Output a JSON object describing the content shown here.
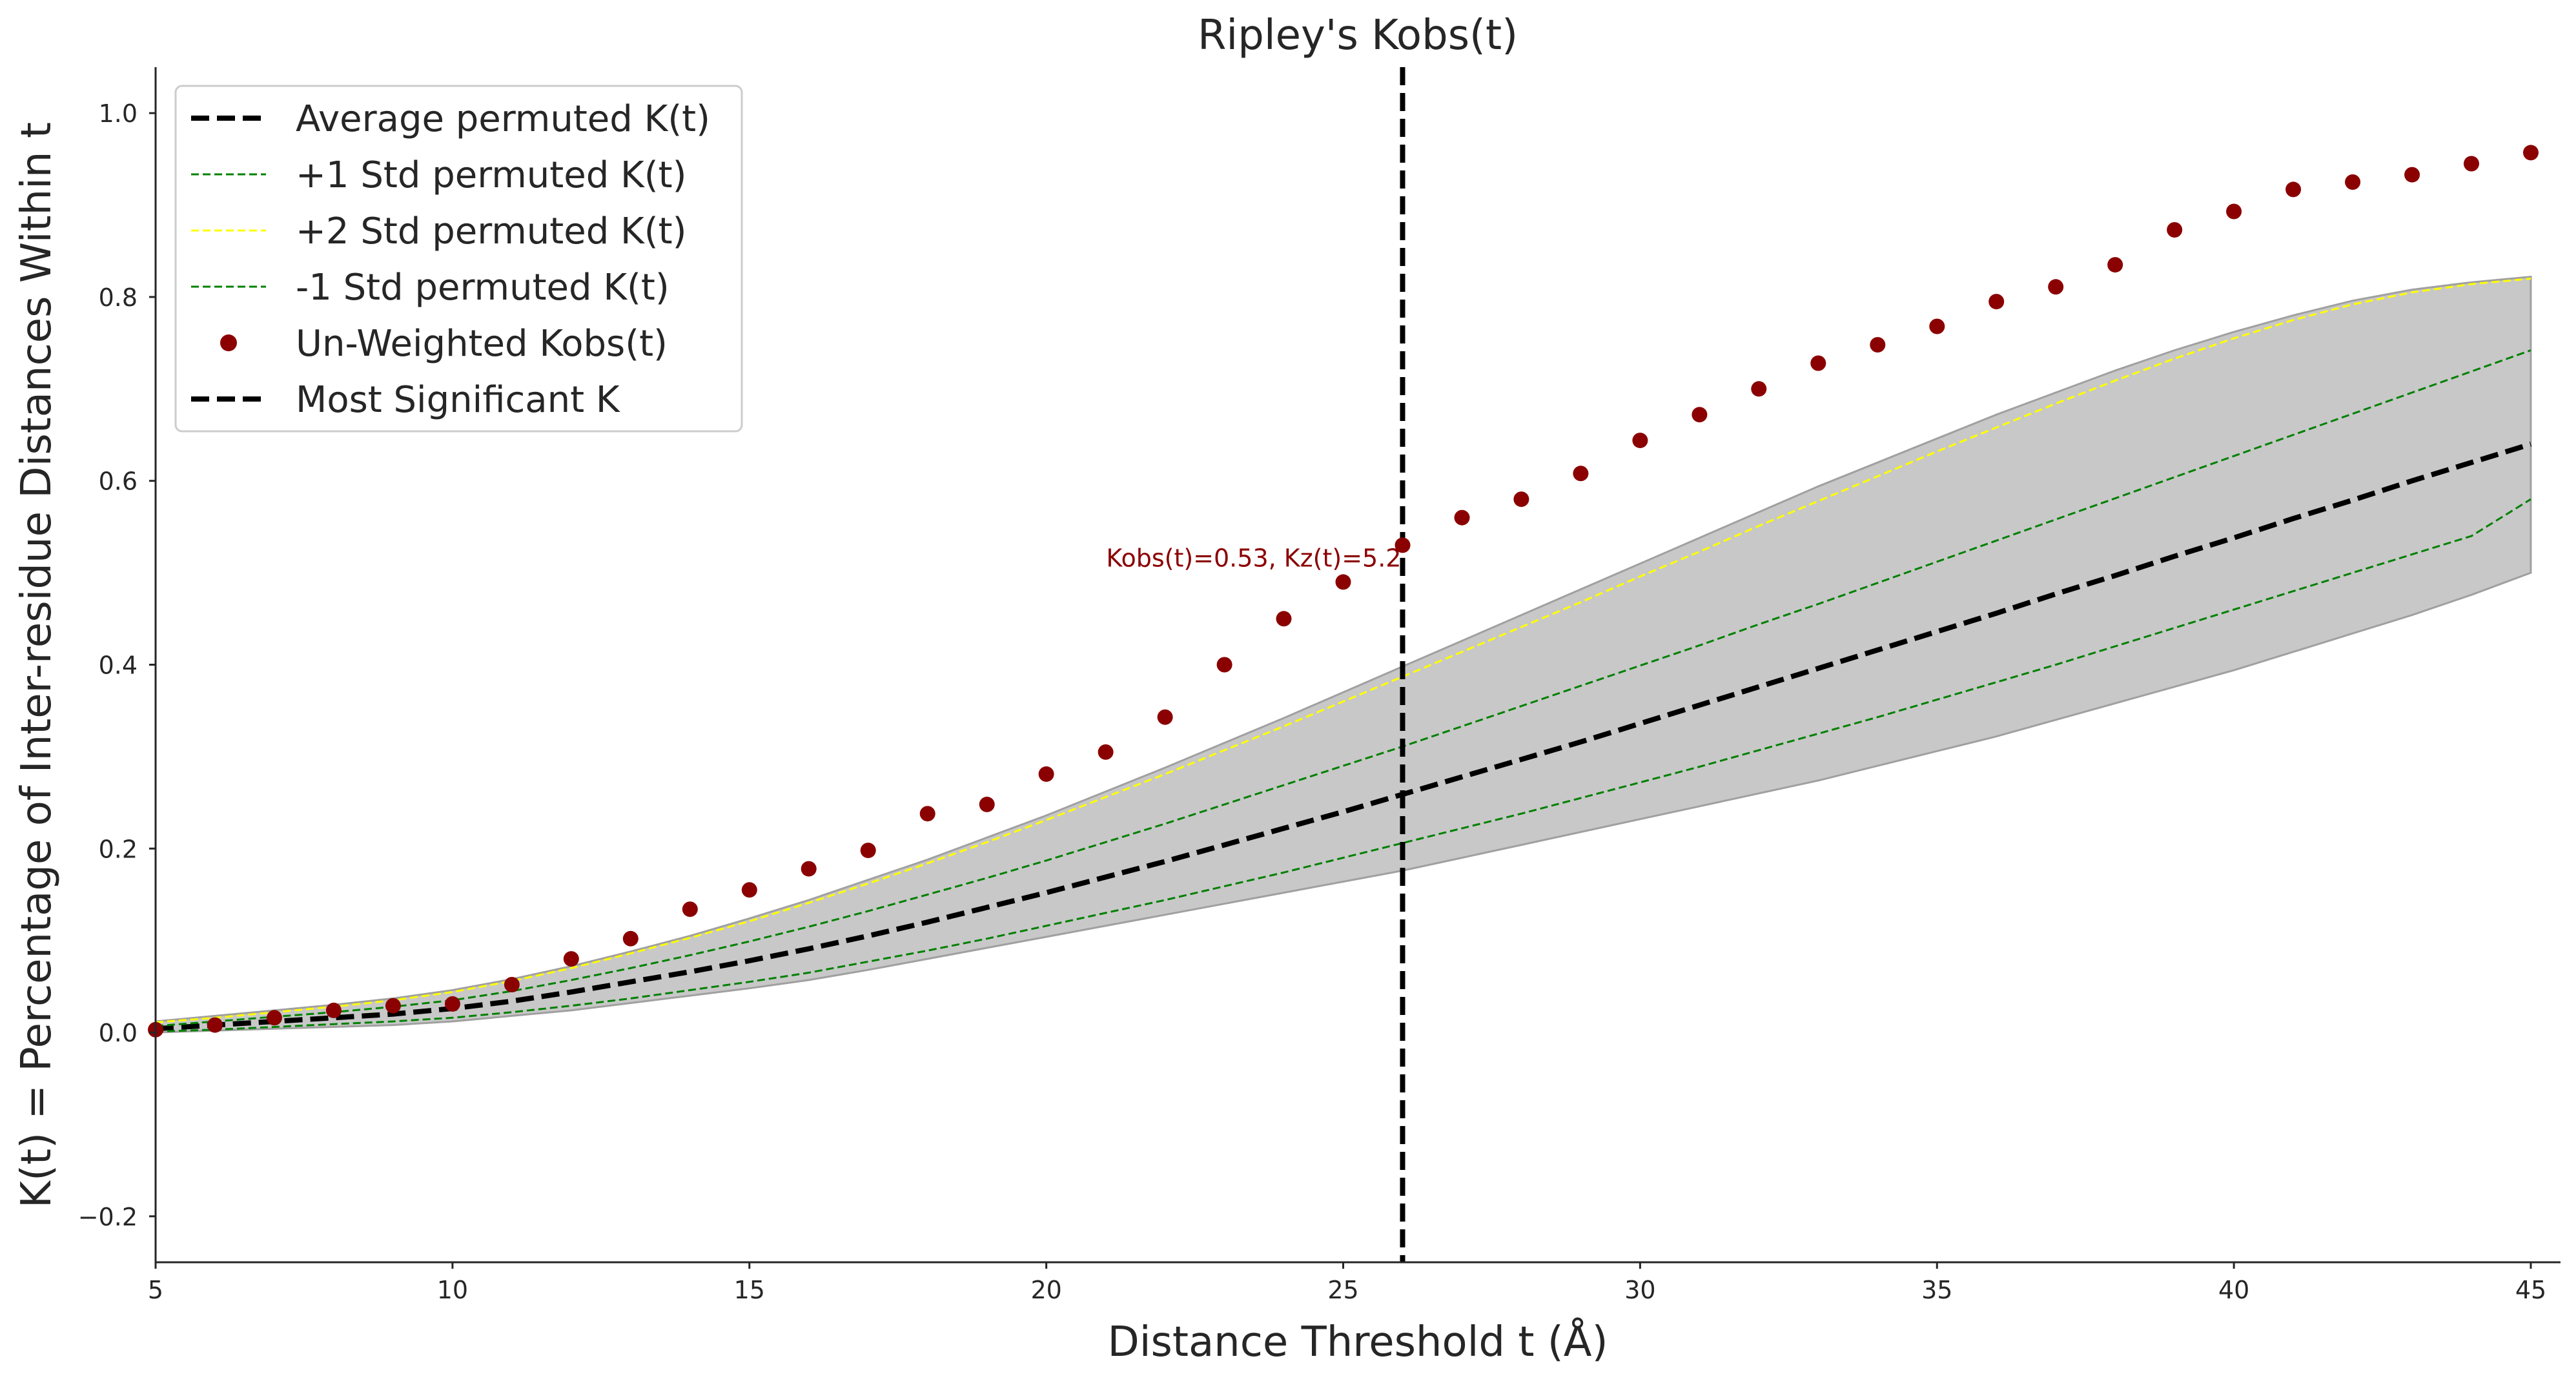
{
  "chart_data": {
    "type": "line",
    "title": "Ripley's Kobs(t)",
    "xlabel": "Distance Threshold t (Å)",
    "ylabel": "K(t) = Percentage of Inter-residue Distances Within t",
    "xlim": [
      5,
      45.5
    ],
    "ylim": [
      -0.25,
      1.05
    ],
    "xticks": [
      5,
      10,
      15,
      20,
      25,
      30,
      35,
      40,
      45
    ],
    "yticks": [
      -0.2,
      0.0,
      0.2,
      0.4,
      0.6,
      0.8,
      1.0
    ],
    "xtick_labels": [
      "5",
      "10",
      "15",
      "20",
      "25",
      "30",
      "35",
      "40",
      "45"
    ],
    "ytick_labels": [
      "−0.2",
      "0.0",
      "0.2",
      "0.4",
      "0.6",
      "0.8",
      "1.0"
    ],
    "grid": false,
    "legend_position": "top-left",
    "x": [
      5,
      6,
      7,
      8,
      9,
      10,
      11,
      12,
      13,
      14,
      15,
      16,
      17,
      18,
      19,
      20,
      21,
      22,
      23,
      24,
      25,
      26,
      27,
      28,
      29,
      30,
      31,
      32,
      33,
      34,
      35,
      36,
      37,
      38,
      39,
      40,
      41,
      42,
      43,
      44,
      45
    ],
    "band": {
      "color": "#c8c8c8",
      "edge_color": "#a0a0a0",
      "lower": [
        0.0,
        0.002,
        0.004,
        0.006,
        0.008,
        0.012,
        0.018,
        0.024,
        0.032,
        0.04,
        0.048,
        0.057,
        0.068,
        0.08,
        0.092,
        0.104,
        0.116,
        0.128,
        0.14,
        0.152,
        0.164,
        0.176,
        0.19,
        0.204,
        0.218,
        0.232,
        0.246,
        0.26,
        0.274,
        0.29,
        0.306,
        0.322,
        0.34,
        0.358,
        0.376,
        0.394,
        0.414,
        0.434,
        0.454,
        0.476,
        0.5
      ],
      "upper": [
        0.012,
        0.018,
        0.024,
        0.03,
        0.037,
        0.046,
        0.058,
        0.072,
        0.088,
        0.105,
        0.124,
        0.144,
        0.166,
        0.188,
        0.212,
        0.236,
        0.262,
        0.288,
        0.315,
        0.342,
        0.37,
        0.398,
        0.426,
        0.454,
        0.482,
        0.51,
        0.538,
        0.566,
        0.594,
        0.62,
        0.646,
        0.672,
        0.696,
        0.72,
        0.742,
        0.762,
        0.78,
        0.796,
        0.808,
        0.816,
        0.822
      ]
    },
    "series": [
      {
        "name": "Average permuted K(t)",
        "kind": "line",
        "color": "#000000",
        "dash": "dashed",
        "values": [
          0.004,
          0.008,
          0.012,
          0.016,
          0.02,
          0.026,
          0.034,
          0.044,
          0.055,
          0.066,
          0.078,
          0.091,
          0.105,
          0.12,
          0.136,
          0.152,
          0.169,
          0.186,
          0.204,
          0.222,
          0.24,
          0.259,
          0.278,
          0.297,
          0.316,
          0.336,
          0.356,
          0.376,
          0.396,
          0.416,
          0.436,
          0.456,
          0.477,
          0.497,
          0.518,
          0.538,
          0.559,
          0.579,
          0.6,
          0.62,
          0.64
        ]
      },
      {
        "name": "+1 Std permuted K(t)",
        "kind": "line",
        "color": "#008000",
        "dash": "dashed-thin",
        "values": [
          0.007,
          0.012,
          0.017,
          0.022,
          0.028,
          0.035,
          0.045,
          0.057,
          0.07,
          0.084,
          0.099,
          0.115,
          0.132,
          0.15,
          0.168,
          0.187,
          0.207,
          0.227,
          0.248,
          0.269,
          0.29,
          0.311,
          0.333,
          0.355,
          0.377,
          0.399,
          0.421,
          0.444,
          0.466,
          0.489,
          0.512,
          0.535,
          0.558,
          0.581,
          0.604,
          0.627,
          0.65,
          0.673,
          0.696,
          0.719,
          0.742
        ]
      },
      {
        "name": "+2 Std permuted K(t)",
        "kind": "line",
        "color": "#ffff00",
        "dash": "dashed-thin",
        "values": [
          0.011,
          0.016,
          0.022,
          0.028,
          0.035,
          0.044,
          0.056,
          0.07,
          0.086,
          0.103,
          0.121,
          0.141,
          0.162,
          0.184,
          0.207,
          0.231,
          0.256,
          0.281,
          0.307,
          0.333,
          0.36,
          0.387,
          0.414,
          0.441,
          0.468,
          0.496,
          0.523,
          0.551,
          0.578,
          0.605,
          0.632,
          0.658,
          0.684,
          0.709,
          0.733,
          0.755,
          0.775,
          0.792,
          0.805,
          0.814,
          0.82
        ]
      },
      {
        "name": "-1 Std permuted K(t)",
        "kind": "line",
        "color": "#008000",
        "dash": "dashed-thin",
        "values": [
          0.001,
          0.003,
          0.006,
          0.009,
          0.012,
          0.016,
          0.022,
          0.029,
          0.037,
          0.046,
          0.055,
          0.065,
          0.077,
          0.089,
          0.102,
          0.116,
          0.13,
          0.144,
          0.159,
          0.174,
          0.19,
          0.206,
          0.222,
          0.238,
          0.255,
          0.272,
          0.289,
          0.307,
          0.325,
          0.343,
          0.362,
          0.381,
          0.4,
          0.42,
          0.44,
          0.46,
          0.48,
          0.5,
          0.52,
          0.54,
          0.58
        ]
      },
      {
        "name": "Un-Weighted Kobs(t)",
        "kind": "scatter",
        "color": "#8b0000",
        "values": [
          0.003,
          0.008,
          0.016,
          0.024,
          0.029,
          0.031,
          0.052,
          0.08,
          0.102,
          0.134,
          0.155,
          0.178,
          0.198,
          0.238,
          0.248,
          0.281,
          0.305,
          0.343,
          0.4,
          0.45,
          0.49,
          0.53,
          0.56,
          0.58,
          0.608,
          0.644,
          0.672,
          0.7,
          0.728,
          0.748,
          0.768,
          0.795,
          0.811,
          0.835,
          0.873,
          0.893,
          0.917,
          0.925,
          0.933,
          0.945,
          0.957
        ]
      }
    ],
    "vline": {
      "name": "Most Significant K",
      "x": 26,
      "color": "#000000",
      "dash": "dashed"
    },
    "annotation": {
      "text": "Kobs(t)=0.53, Kz(t)=5.2",
      "x": 26,
      "y": 0.53,
      "color": "#8b0000"
    }
  }
}
